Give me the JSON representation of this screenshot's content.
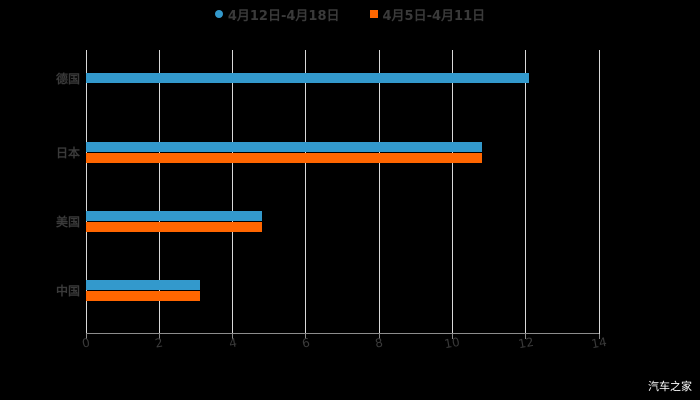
{
  "legend": [
    {
      "label": "4月12日-4月18日",
      "color": "#3399cc",
      "shape": "circle"
    },
    {
      "label": "4月5日-4月11日",
      "color": "#ff6600",
      "shape": "square"
    }
  ],
  "watermark": "汽车之家",
  "chart_data": {
    "type": "bar",
    "orientation": "horizontal",
    "title": "",
    "categories": [
      "德国",
      "日本",
      "美国",
      "中国"
    ],
    "series": [
      {
        "name": "4月12日-4月18日",
        "color": "#3399cc",
        "values": [
          12.1,
          10.8,
          4.8,
          3.1
        ]
      },
      {
        "name": "4月5日-4月11日",
        "color": "#ff6600",
        "values": [
          null,
          10.8,
          4.8,
          3.1
        ]
      }
    ],
    "xlabel": "",
    "ylabel": "",
    "xlim": [
      0,
      14
    ],
    "xticks": [
      "0",
      "2",
      "4",
      "6",
      "8",
      "10",
      "12",
      "14"
    ],
    "grid": true,
    "legend_position": "top"
  }
}
